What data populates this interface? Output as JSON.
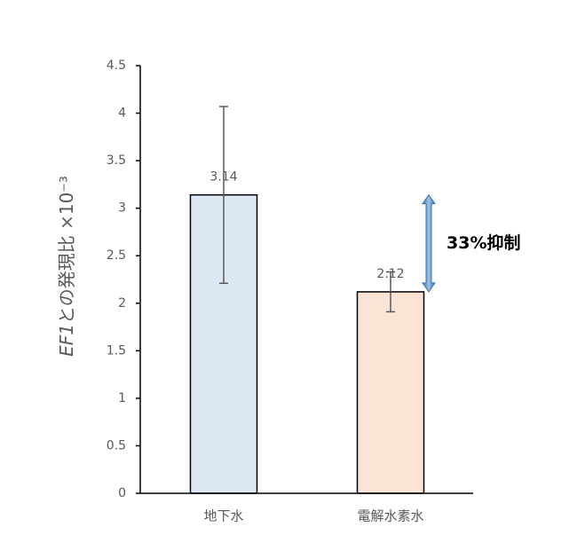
{
  "chart_data": {
    "type": "bar",
    "ylabel": {
      "gene": "EF1",
      "rest": "との発現比 ×10⁻³"
    },
    "categories": [
      "地下水",
      "電解水素水"
    ],
    "values": [
      3.14,
      2.12
    ],
    "errors": [
      0.93,
      0.21
    ],
    "colors": [
      "#dde8f5",
      "#fbe3d6"
    ],
    "ylim": [
      0,
      4.5
    ],
    "yticks": [
      0,
      0.5,
      1,
      1.5,
      2,
      2.5,
      3,
      3.5,
      4,
      4.5
    ],
    "grid": false,
    "annotation": "33%抑制"
  }
}
